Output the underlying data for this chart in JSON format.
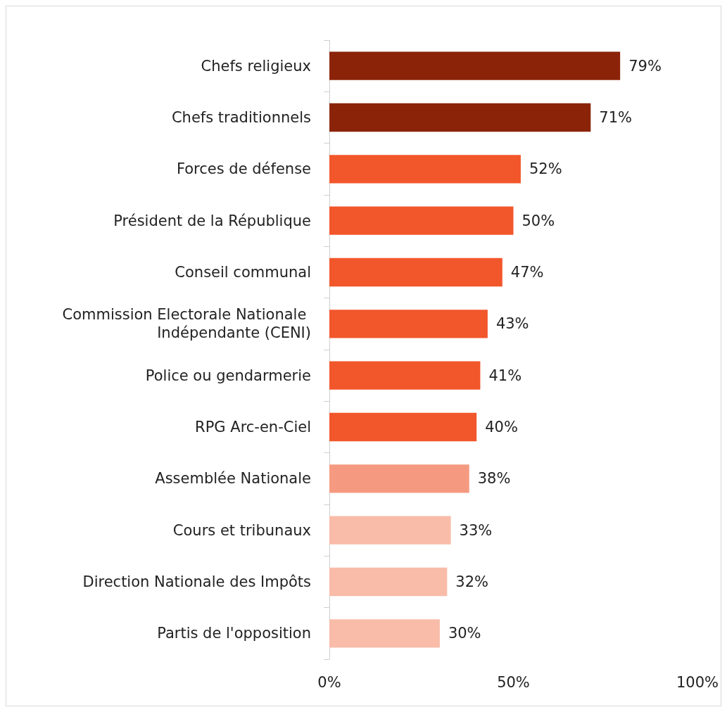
{
  "chart_data": {
    "type": "bar",
    "orientation": "horizontal",
    "categories": [
      "Chefs religieux",
      "Chefs traditionnels",
      "Forces de défense",
      "Président de la République",
      "Conseil communal",
      "Commission Electorale Nationale Indépendante (CENI)",
      "Police ou gendarmerie",
      "RPG Arc-en-Ciel",
      "Assemblée Nationale",
      "Cours et tribunaux",
      "Direction Nationale des Impôts",
      "Partis de l'opposition"
    ],
    "values": [
      79,
      71,
      52,
      50,
      47,
      43,
      41,
      40,
      38,
      33,
      32,
      30
    ],
    "colors": [
      "#8b2309",
      "#8b2309",
      "#f2562b",
      "#f2562b",
      "#f2562b",
      "#f2562b",
      "#f2562b",
      "#f2562b",
      "#f59a80",
      "#f8bca8",
      "#f8bca8",
      "#f8bca8"
    ],
    "value_labels": [
      "79%",
      "71%",
      "52%",
      "50%",
      "47%",
      "43%",
      "41%",
      "40%",
      "38%",
      "33%",
      "32%",
      "30%"
    ],
    "xlim": [
      0,
      100
    ],
    "xticks": [
      {
        "value": 0,
        "label": "0%"
      },
      {
        "value": 50,
        "label": "50%"
      },
      {
        "value": 100,
        "label": "100%"
      }
    ],
    "grid": false
  }
}
